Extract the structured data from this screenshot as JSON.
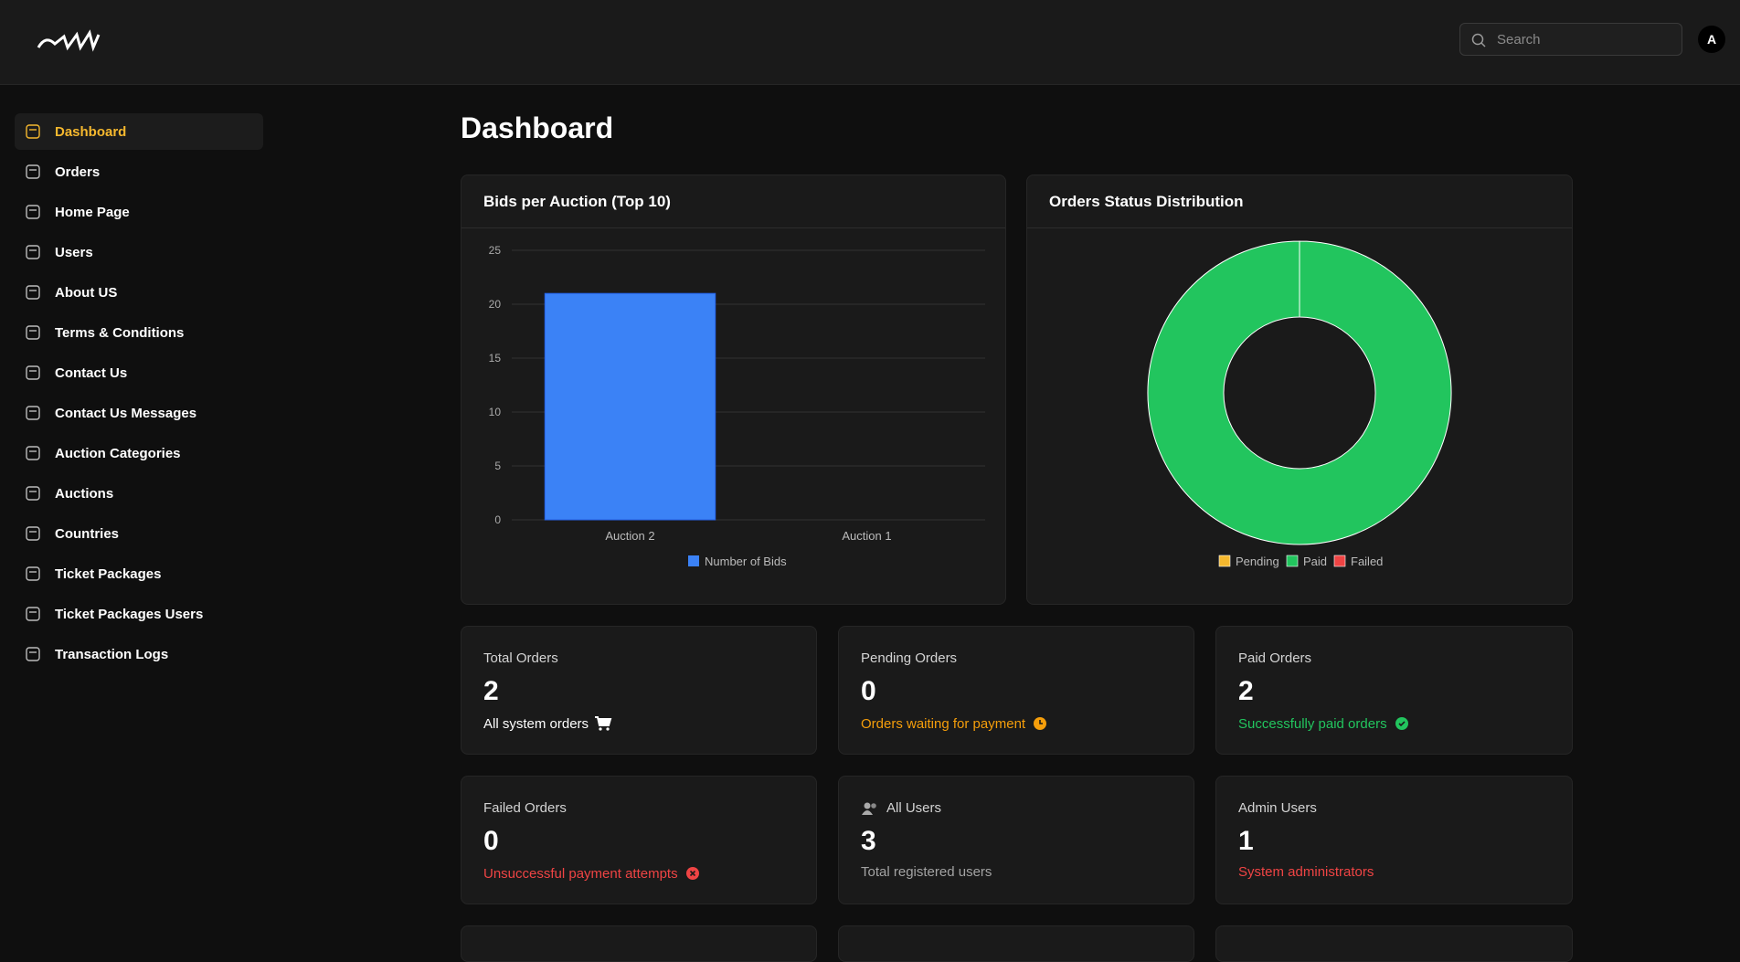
{
  "header": {
    "search_placeholder": "Search",
    "avatar": "A"
  },
  "sidebar": {
    "items": [
      "Dashboard",
      "Orders",
      "Home Page",
      "Users",
      "About US",
      "Terms & Conditions",
      "Contact Us",
      "Contact Us Messages",
      "Auction Categories",
      "Auctions",
      "Countries",
      "Ticket Packages",
      "Ticket Packages Users",
      "Transaction Logs"
    ],
    "active": 0
  },
  "page_title": "Dashboard",
  "chart_data": [
    {
      "type": "bar",
      "title": "Bids per Auction (Top 10)",
      "categories": [
        "Auction 2",
        "Auction 1"
      ],
      "series": [
        {
          "name": "Number of Bids",
          "color": "#3b82f6",
          "values": [
            21,
            0
          ]
        }
      ],
      "ylim": [
        0,
        25
      ],
      "yticks": [
        0,
        5,
        10,
        15,
        20,
        25
      ],
      "grid": true,
      "legend": "bottom"
    },
    {
      "type": "doughnut",
      "title": "Orders Status Distribution",
      "categories": [
        "Pending",
        "Paid",
        "Failed"
      ],
      "values": [
        0,
        2,
        0
      ],
      "colors": [
        "#f5b82e",
        "#22c55e",
        "#ef4444"
      ],
      "legend": "bottom"
    }
  ],
  "stats": [
    {
      "label": "Total Orders",
      "value": "2",
      "note": "All system orders",
      "color": "#ffffff",
      "icon": "cart"
    },
    {
      "label": "Pending Orders",
      "value": "0",
      "note": "Orders waiting for payment",
      "color": "#f59e0b",
      "icon": "clock"
    },
    {
      "label": "Paid Orders",
      "value": "2",
      "note": "Successfully paid orders",
      "color": "#22c55e",
      "icon": "check"
    },
    {
      "label": "Failed Orders",
      "value": "0",
      "note": "Unsuccessful payment attempts",
      "color": "#ef4444",
      "icon": "x"
    },
    {
      "label": "All Users",
      "value": "3",
      "note": "Total registered users",
      "color": "#a3a3a3",
      "icon": "users"
    },
    {
      "label": "Admin Users",
      "value": "1",
      "note": "System administrators",
      "color": "#ef4444",
      "icon": "none"
    }
  ]
}
